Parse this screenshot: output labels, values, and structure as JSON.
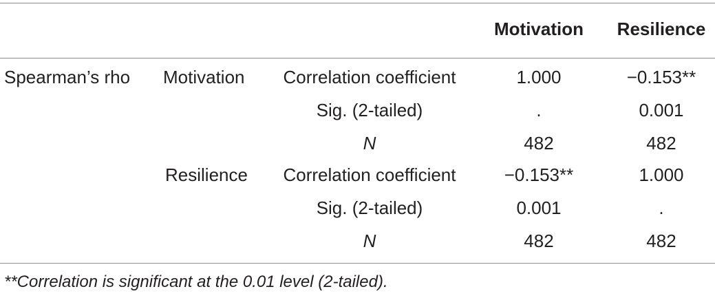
{
  "table": {
    "headers": {
      "col4": "Motivation",
      "col5": "Resilience"
    },
    "rows": [
      {
        "group": "Spearman’s rho",
        "variable": "Motivation",
        "statistic": "Correlation coefficient",
        "motivation": "1.000",
        "resilience": "−0.153**"
      },
      {
        "group": "",
        "variable": "",
        "statistic": "Sig. (2-tailed)",
        "motivation": ".",
        "resilience": "0.001"
      },
      {
        "group": "",
        "variable": "",
        "statistic": "N",
        "motivation": "482",
        "resilience": "482"
      },
      {
        "group": "",
        "variable": "Resilience",
        "statistic": "Correlation coefficient",
        "motivation": "−0.153**",
        "resilience": "1.000"
      },
      {
        "group": "",
        "variable": "",
        "statistic": "Sig. (2-tailed)",
        "motivation": "0.001",
        "resilience": "."
      },
      {
        "group": "",
        "variable": "",
        "statistic": "N",
        "motivation": "482",
        "resilience": "482"
      }
    ]
  },
  "footnote": "**Correlation is significant at the 0.01 level (2-tailed)."
}
